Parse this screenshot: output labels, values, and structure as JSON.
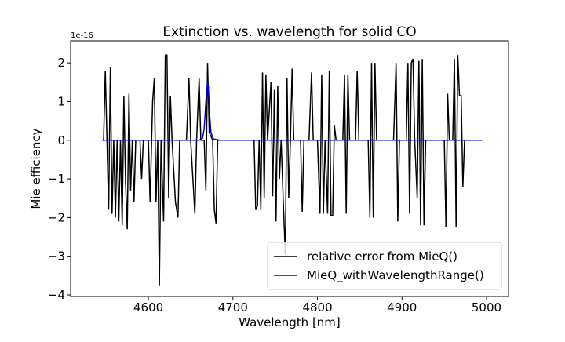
{
  "chart_data": {
    "type": "line",
    "title": "Extinction vs. wavelength for solid CO",
    "x_label": "Wavelength [nm]",
    "y_label": "Mie efficiency",
    "y_offset_label": "1e-16",
    "xlim": [
      4508,
      5026
    ],
    "ylim": [
      -4.04,
      2.57
    ],
    "xticks": [
      4600,
      4700,
      4800,
      4900,
      5000
    ],
    "yticks": [
      {
        "value": -4,
        "label": "−4"
      },
      {
        "value": -3,
        "label": "−3"
      },
      {
        "value": -2,
        "label": "−2"
      },
      {
        "value": -1,
        "label": "−1"
      },
      0,
      1,
      2
    ],
    "legend": "lower right",
    "series": [
      {
        "name": "relative error from MieQ()",
        "color": "#000000",
        "x": [
          4547,
          4549,
          4551,
          4553,
          4555,
          4557,
          4559,
          4561,
          4563,
          4565,
          4567,
          4569,
          4571,
          4573,
          4575,
          4577,
          4579,
          4581,
          4583,
          4585,
          4590,
          4592,
          4594,
          4600,
          4602,
          4605,
          4607,
          4609,
          4611,
          4613,
          4615,
          4618,
          4620,
          4622,
          4624,
          4626,
          4628,
          4632,
          4635,
          4637,
          4645,
          4648,
          4650,
          4655,
          4657,
          4660,
          4662,
          4666,
          4668,
          4670,
          4672,
          4676,
          4678,
          4680,
          4682,
          4725,
          4727,
          4729,
          4731,
          4733,
          4735,
          4737,
          4739,
          4741,
          4745,
          4747,
          4749,
          4751,
          4753,
          4755,
          4757,
          4760,
          4762,
          4764,
          4766,
          4768,
          4770,
          4772,
          4780,
          4782,
          4784,
          4790,
          4793,
          4795,
          4800,
          4803,
          4805,
          4807,
          4809,
          4812,
          4814,
          4816,
          4818,
          4820,
          4822,
          4830,
          4832,
          4834,
          4836,
          4838,
          4845,
          4847,
          4849,
          4860,
          4862,
          4864,
          4866,
          4868,
          4870,
          4890,
          4893,
          4895,
          4897,
          4905,
          4907,
          4909,
          4911,
          4913,
          4915,
          4918,
          4920,
          4922,
          4924,
          4926,
          4928,
          4950,
          4952,
          4954,
          4956,
          4960,
          4962,
          4964,
          4966,
          4968,
          4970,
          4972,
          4974,
          4995
        ],
        "values": [
          0,
          1.8,
          0,
          -1.8,
          1.9,
          -1.9,
          0,
          -2.0,
          0,
          -2.1,
          0,
          -2.2,
          1.15,
          -1.1,
          -2.3,
          1.2,
          -1.3,
          0,
          -1.6,
          0,
          0,
          -1.0,
          0,
          0,
          -1.6,
          1.0,
          1.6,
          -1.6,
          0,
          -3.75,
          0,
          -2.1,
          2.2,
          2.2,
          -1.5,
          1.15,
          0,
          -1.6,
          -2.0,
          0,
          0,
          1.6,
          0,
          -1.9,
          0,
          1.6,
          0,
          0,
          -1.3,
          2.0,
          0.2,
          0,
          -1.8,
          -2.15,
          0,
          0,
          -1.8,
          -1.7,
          0,
          -1.8,
          1.75,
          -1.5,
          1.7,
          0,
          1.5,
          -1.45,
          1.3,
          -2.1,
          1.4,
          -1.0,
          0,
          -1.85,
          -2.95,
          1.6,
          -1.5,
          0,
          1.85,
          0,
          0,
          -1.85,
          0,
          0,
          1.75,
          0,
          0,
          -1.9,
          1.7,
          -1.9,
          0,
          -1.9,
          1.8,
          -1.95,
          -1.95,
          0.4,
          0,
          0,
          1.7,
          -1.9,
          1.7,
          0,
          0,
          1.8,
          0,
          0,
          -2.0,
          2.0,
          -2.0,
          2.0,
          0,
          0,
          2.0,
          -2.1,
          0,
          0,
          2.0,
          -1.9,
          2.0,
          2.1,
          0,
          -1.5,
          2.05,
          -2.2,
          2.1,
          -2.2,
          0,
          0,
          -2.25,
          1.2,
          0,
          0,
          2.1,
          -2.25,
          2.2,
          1.15,
          1.15,
          -1.2,
          0,
          0
        ]
      },
      {
        "name": "MieQ_withWavelengthRange()",
        "color": "#0000cc",
        "x": [
          4545,
          4660,
          4664,
          4666,
          4668,
          4670,
          4671,
          4672,
          4674,
          4677,
          4685,
          4995
        ],
        "values": [
          0,
          0,
          0.05,
          0.3,
          1.0,
          1.5,
          1.4,
          0.8,
          0.2,
          0.03,
          0,
          0
        ]
      }
    ]
  }
}
